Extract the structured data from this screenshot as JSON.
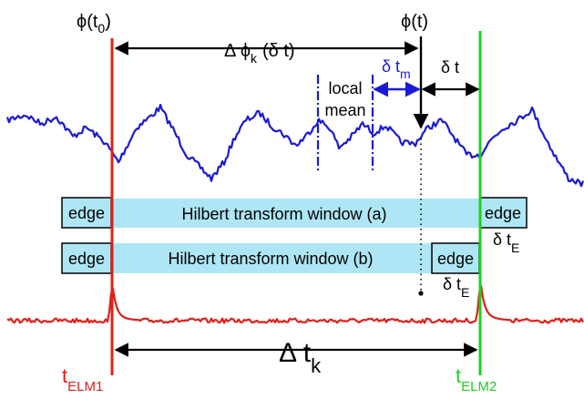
{
  "labels": {
    "phi_t0": "ϕ(t",
    "phi_t0_sub": "0",
    "phi_t0_close": ")",
    "phi_t": "ϕ(t)",
    "delta_phi": "Δ ϕ",
    "delta_phi_sub": "k",
    "delta_phi_arg": "(δ t)",
    "local_mean_1": "local",
    "local_mean_2": "mean",
    "delta_tm": "δ t",
    "delta_tm_sub": "m",
    "delta_t": "δ t",
    "delta_tE_right": "δ t",
    "delta_tE_right_sub": "E",
    "delta_tE_mid": "δ t",
    "delta_tE_mid_sub": "E",
    "delta_tk": "Δ t",
    "delta_tk_sub": "k",
    "t_elm1": "t",
    "t_elm1_sub": "ELM1",
    "t_elm2": "t",
    "t_elm2_sub": "ELM2"
  },
  "windows": {
    "a": {
      "label": "Hilbert transform window (a)",
      "edge_left": "edge",
      "edge_right": "edge"
    },
    "b": {
      "label": "Hilbert transform window (b)",
      "edge_left": "edge",
      "edge_right": "edge"
    }
  },
  "colors": {
    "signal": "#1a1ad6",
    "elm_trace": "#e0201b",
    "elm1_line": "#e0201b",
    "elm2_line": "#22cc22",
    "window_fill": "#aee6f5",
    "local_mean_marker": "#1a1ad6",
    "arrow": "#000000"
  }
}
